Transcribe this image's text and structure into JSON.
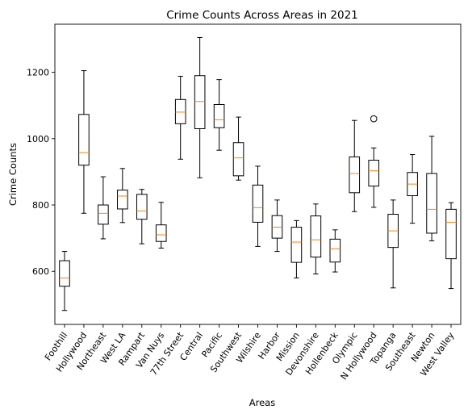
{
  "chart_data": {
    "type": "boxplot",
    "title": "Crime Counts Across Areas in 2021",
    "xlabel": "Areas",
    "ylabel": "Crime Counts",
    "ylim": [
      440,
      1345
    ],
    "yticks": [
      600,
      800,
      1000,
      1200
    ],
    "grid": false,
    "legend": "none",
    "colors": {
      "box": "#000000",
      "median": "#ff7f0e",
      "flier": "#000000"
    },
    "categories": [
      "Foothill",
      "Hollywood",
      "Northeast",
      "West LA",
      "Rampart",
      "Van Nuys",
      "77th Street",
      "Central",
      "Pacific",
      "Southwest",
      "Wilshire",
      "Harbor",
      "Mission",
      "Devonshire",
      "Hollenbeck",
      "Olympic",
      "N Hollywood",
      "Topanga",
      "Southeast",
      "Newton",
      "West Valley"
    ],
    "boxes": [
      {
        "whislo": 482,
        "q1": 555,
        "med": 580,
        "q3": 632,
        "whishi": 660,
        "fliers": []
      },
      {
        "whislo": 775,
        "q1": 920,
        "med": 958,
        "q3": 1073,
        "whishi": 1205,
        "fliers": []
      },
      {
        "whislo": 698,
        "q1": 742,
        "med": 775,
        "q3": 800,
        "whishi": 885,
        "fliers": []
      },
      {
        "whislo": 747,
        "q1": 788,
        "med": 827,
        "q3": 845,
        "whishi": 910,
        "fliers": []
      },
      {
        "whislo": 683,
        "q1": 757,
        "med": 782,
        "q3": 832,
        "whishi": 847,
        "fliers": []
      },
      {
        "whislo": 670,
        "q1": 690,
        "med": 710,
        "q3": 740,
        "whishi": 808,
        "fliers": []
      },
      {
        "whislo": 938,
        "q1": 1045,
        "med": 1080,
        "q3": 1118,
        "whishi": 1188,
        "fliers": []
      },
      {
        "whislo": 882,
        "q1": 1030,
        "med": 1112,
        "q3": 1190,
        "whishi": 1305,
        "fliers": []
      },
      {
        "whislo": 965,
        "q1": 1033,
        "med": 1057,
        "q3": 1103,
        "whishi": 1178,
        "fliers": []
      },
      {
        "whislo": 875,
        "q1": 888,
        "med": 942,
        "q3": 988,
        "whishi": 1065,
        "fliers": []
      },
      {
        "whislo": 675,
        "q1": 748,
        "med": 792,
        "q3": 860,
        "whishi": 917,
        "fliers": []
      },
      {
        "whislo": 660,
        "q1": 700,
        "med": 733,
        "q3": 768,
        "whishi": 815,
        "fliers": []
      },
      {
        "whislo": 580,
        "q1": 627,
        "med": 688,
        "q3": 733,
        "whishi": 753,
        "fliers": []
      },
      {
        "whislo": 592,
        "q1": 643,
        "med": 695,
        "q3": 767,
        "whishi": 803,
        "fliers": []
      },
      {
        "whislo": 598,
        "q1": 628,
        "med": 668,
        "q3": 697,
        "whishi": 725,
        "fliers": []
      },
      {
        "whislo": 780,
        "q1": 837,
        "med": 895,
        "q3": 945,
        "whishi": 1055,
        "fliers": []
      },
      {
        "whislo": 793,
        "q1": 857,
        "med": 903,
        "q3": 935,
        "whishi": 972,
        "fliers": [
          1060
        ]
      },
      {
        "whislo": 550,
        "q1": 672,
        "med": 722,
        "q3": 772,
        "whishi": 815,
        "fliers": []
      },
      {
        "whislo": 745,
        "q1": 828,
        "med": 863,
        "q3": 898,
        "whishi": 952,
        "fliers": []
      },
      {
        "whislo": 692,
        "q1": 715,
        "med": 787,
        "q3": 895,
        "whishi": 1007,
        "fliers": []
      },
      {
        "whislo": 548,
        "q1": 638,
        "med": 748,
        "q3": 787,
        "whishi": 807,
        "fliers": []
      }
    ]
  }
}
